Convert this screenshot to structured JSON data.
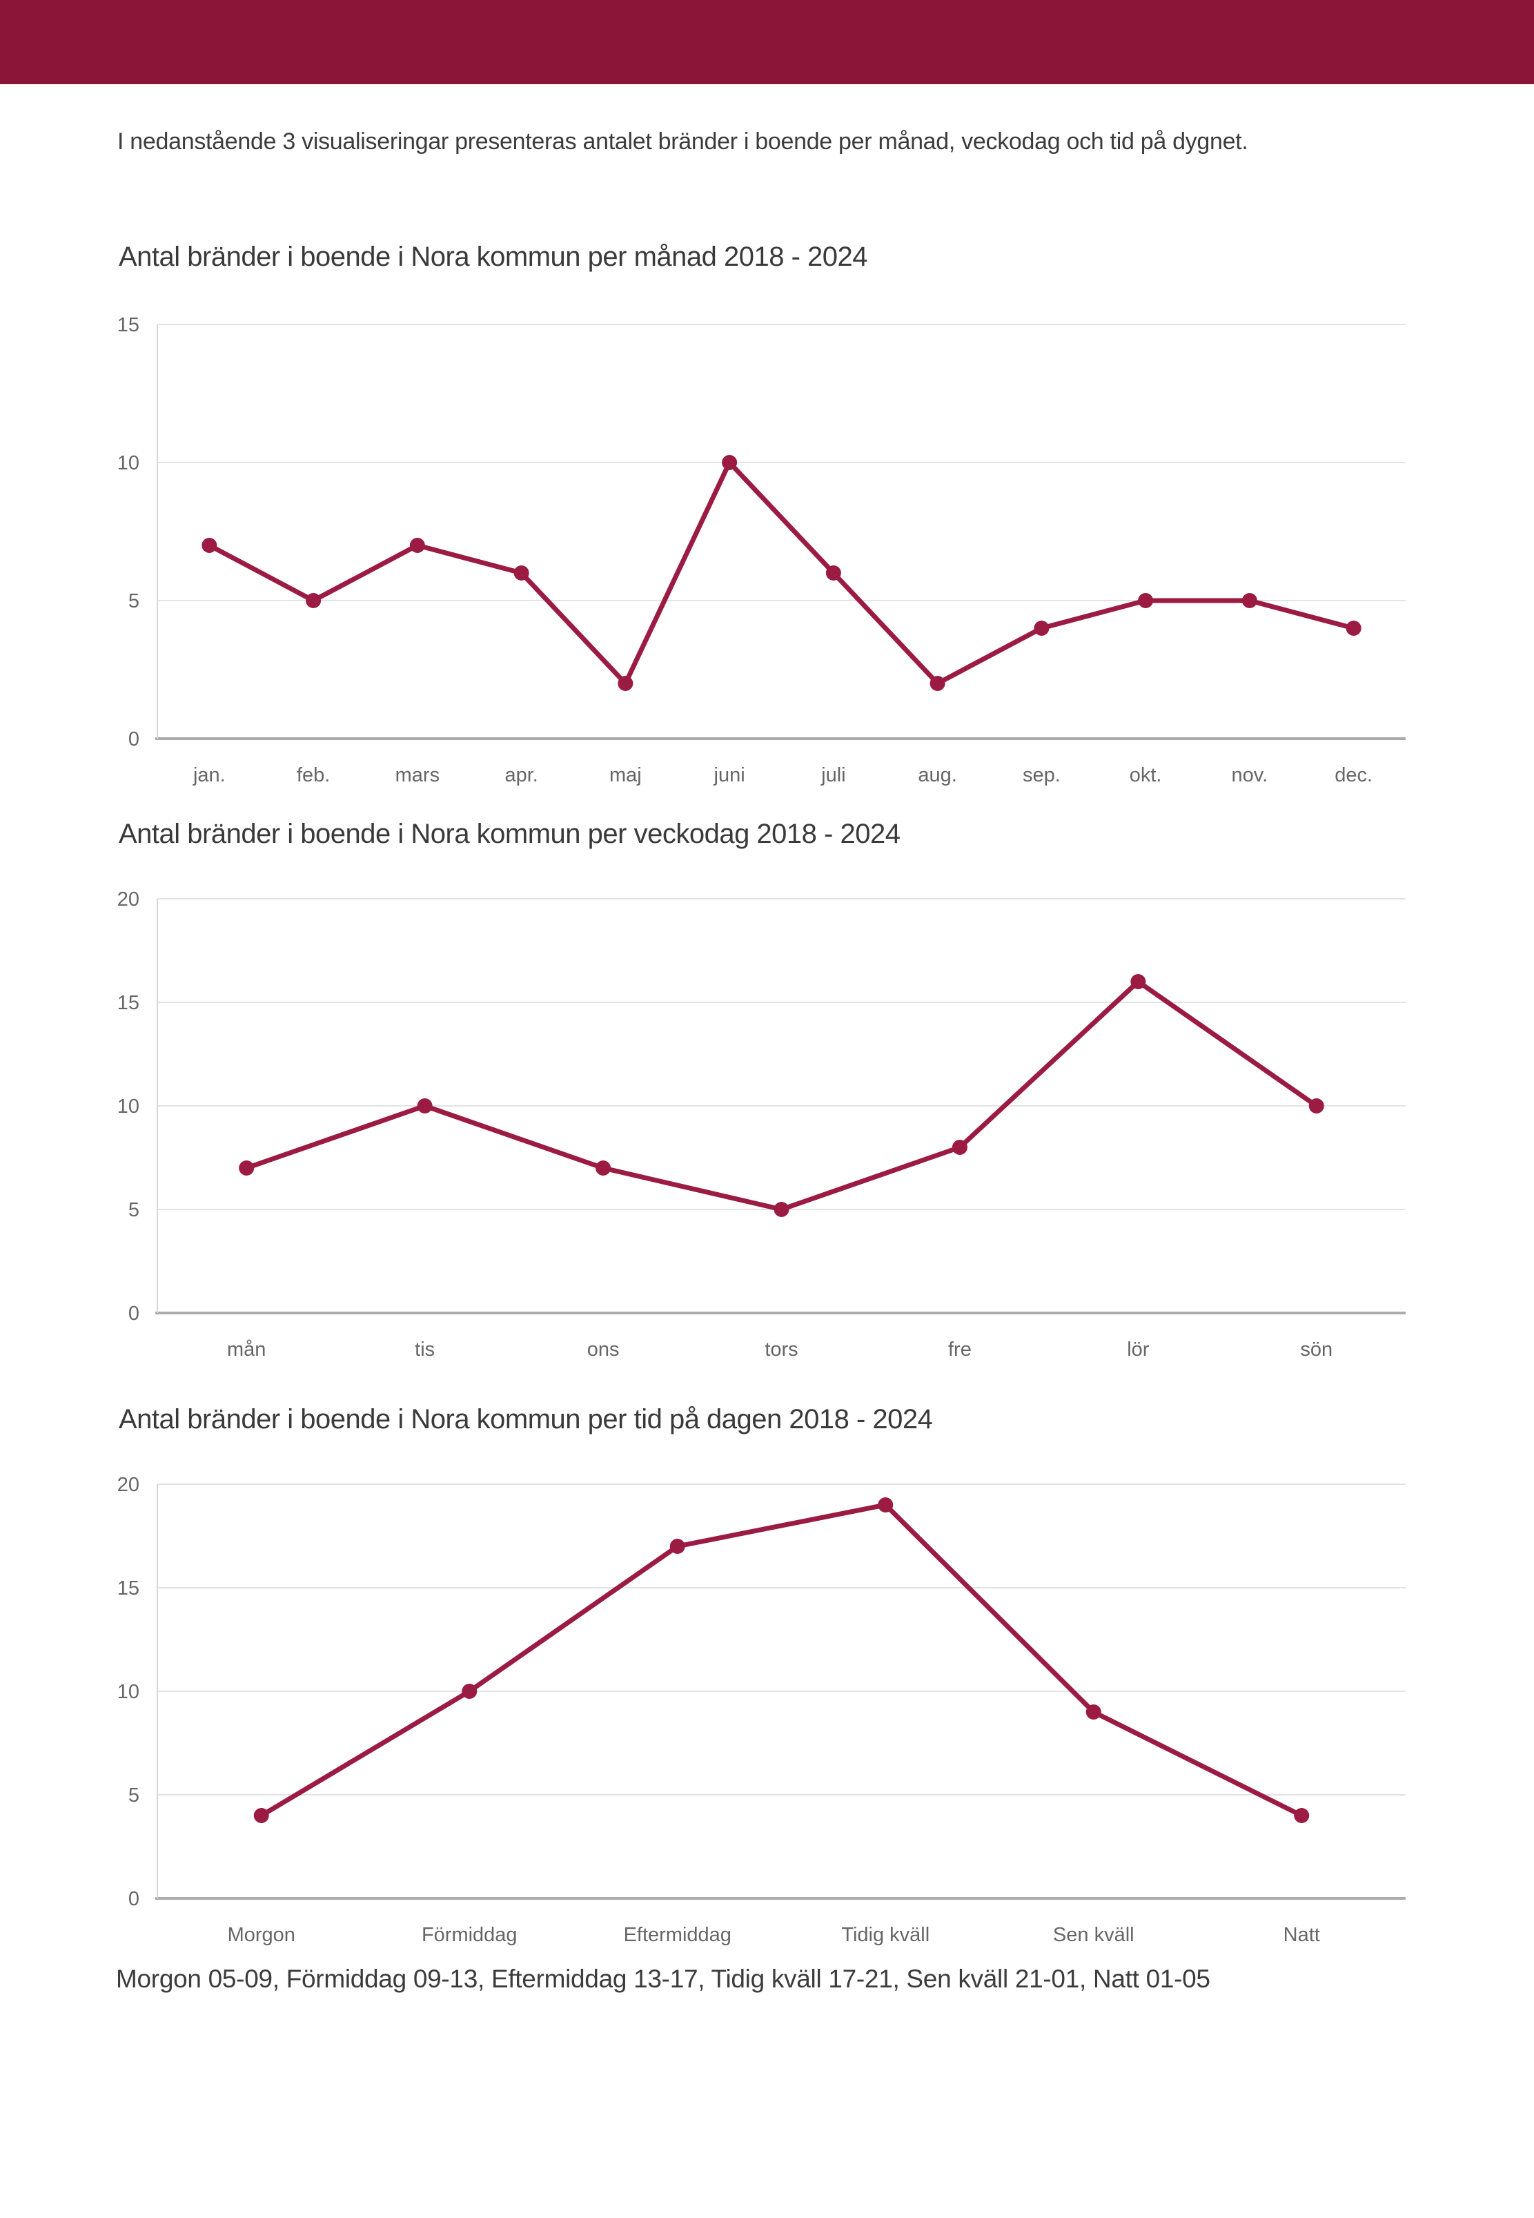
{
  "page": {
    "intro_text": "I nedanstående 3 visualiseringar presenteras antalet bränder i boende per månad, veckodag och tid på dygnet.",
    "footer_note": "Morgon 05-09, Förmiddag 09-13, Eftermiddag 13-17, Tidig kväll 17-21, Sen kväll 21-01, Natt 01-05"
  },
  "colors": {
    "banner": "#8B1538",
    "series_line": "#9B1B42",
    "grid_line": "#E3E3E3",
    "axis_line": "#D8D8D8",
    "baseline": "#ABABAB",
    "tick_text": "#666666",
    "body_text": "#3C3C3C"
  },
  "chart_data": [
    {
      "type": "line",
      "title": "Antal bränder i boende i Nora kommun per månad 2018 - 2024",
      "categories": [
        "jan.",
        "feb.",
        "mars",
        "apr.",
        "maj",
        "juni",
        "juli",
        "aug.",
        "sep.",
        "okt.",
        "nov.",
        "dec."
      ],
      "values": [
        7,
        5,
        7,
        6,
        2,
        10,
        6,
        2,
        4,
        5,
        5,
        4
      ],
      "xlabel": "",
      "ylabel": "",
      "ylim": [
        0,
        15
      ],
      "yticks": [
        0,
        5,
        10,
        15
      ],
      "grid": "horizontal",
      "legend": "none",
      "marker": "circle"
    },
    {
      "type": "line",
      "title": "Antal bränder i boende i Nora kommun per veckodag 2018 - 2024",
      "categories": [
        "mån",
        "tis",
        "ons",
        "tors",
        "fre",
        "lör",
        "sön"
      ],
      "values": [
        7,
        10,
        7,
        5,
        8,
        16,
        10
      ],
      "xlabel": "",
      "ylabel": "",
      "ylim": [
        0,
        20
      ],
      "yticks": [
        0,
        5,
        10,
        15,
        20
      ],
      "grid": "horizontal",
      "legend": "none",
      "marker": "circle"
    },
    {
      "type": "line",
      "title": "Antal bränder i boende i Nora kommun per tid på dagen 2018 - 2024",
      "categories": [
        "Morgon",
        "Förmiddag",
        "Eftermiddag",
        "Tidig kväll",
        "Sen kväll",
        "Natt"
      ],
      "values": [
        4,
        10,
        17,
        19,
        9,
        4
      ],
      "xlabel": "",
      "ylabel": "",
      "ylim": [
        0,
        20
      ],
      "yticks": [
        0,
        5,
        10,
        15,
        20
      ],
      "grid": "horizontal",
      "legend": "none",
      "marker": "circle"
    }
  ]
}
